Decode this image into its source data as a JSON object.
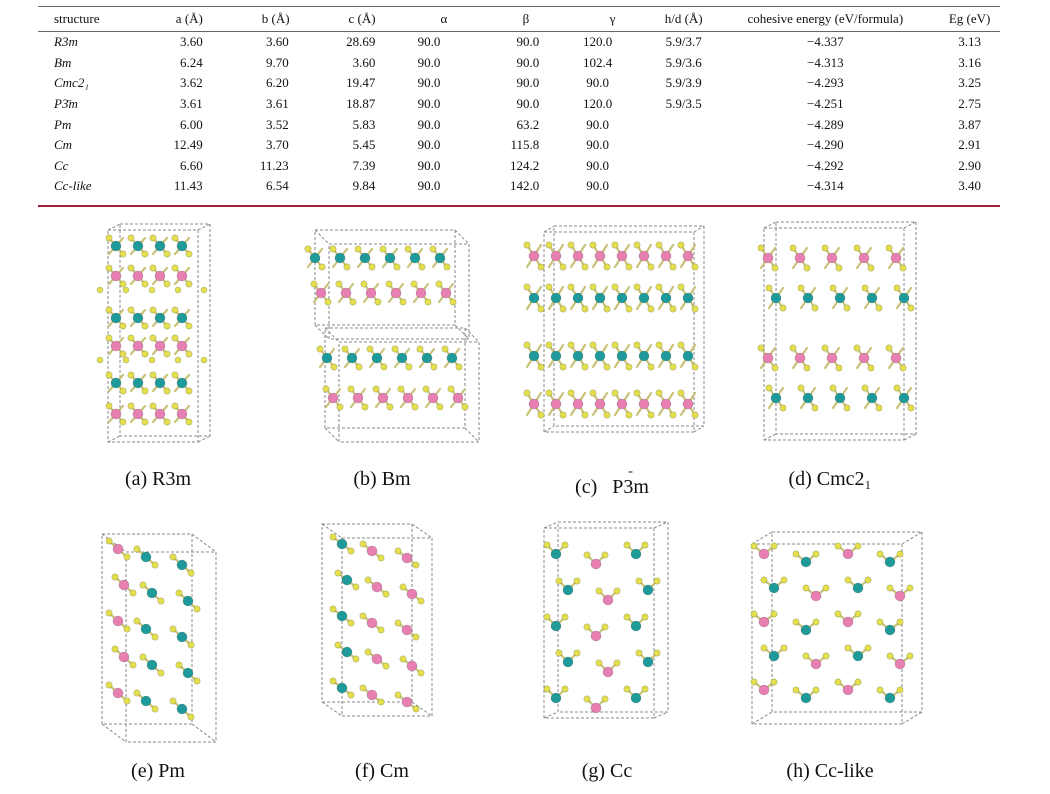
{
  "table": {
    "headers": [
      "structure",
      "a (Å)",
      "b (Å)",
      "c (Å)",
      "α",
      "β",
      "γ",
      "h/d (Å)",
      "cohesive energy (eV/formula)",
      "Eg (eV)"
    ],
    "rows": [
      [
        "R3m",
        "3.60",
        "3.60",
        "28.69",
        "90.0",
        "90.0",
        "120.0",
        "5.9/3.7",
        "−4.337",
        "3.13"
      ],
      [
        "Bm",
        "6.24",
        "9.70",
        "3.60",
        "90.0",
        "90.0",
        "102.4",
        "5.9/3.6",
        "−4.313",
        "3.16"
      ],
      [
        "Cmc2₁",
        "3.62",
        "6.20",
        "19.47",
        "90.0",
        "90.0",
        "90.0",
        "5.9/3.9",
        "−4.293",
        "3.25"
      ],
      [
        "P3̄m",
        "3.61",
        "3.61",
        "18.87",
        "90.0",
        "90.0",
        "120.0",
        "5.9/3.5",
        "−4.251",
        "2.75"
      ],
      [
        "Pm",
        "6.00",
        "3.52",
        "5.83",
        "90.0",
        "63.2",
        "90.0",
        "",
        "−4.289",
        "3.87"
      ],
      [
        "Cm",
        "12.49",
        "3.70",
        "5.45",
        "90.0",
        "115.8",
        "90.0",
        "",
        "−4.290",
        "2.91"
      ],
      [
        "Cc",
        "6.60",
        "11.23",
        "7.39",
        "90.0",
        "124.2",
        "90.0",
        "",
        "−4.292",
        "2.90"
      ],
      [
        "Cc-like",
        "11.43",
        "6.54",
        "9.84",
        "90.0",
        "142.0",
        "90.0",
        "",
        "−4.314",
        "3.40"
      ]
    ]
  },
  "figure": {
    "captions": {
      "a": "(a) R3m",
      "b": "(b) Bm",
      "c_prefix": "(c)",
      "c_main": "P3m",
      "c_overbar": "-",
      "d": "(d) Cmc2₁",
      "e": "(e) Pm",
      "f": "(f) Cm",
      "g": "(g) Cc",
      "h": "(h) Cc-like"
    },
    "colors": {
      "pink_atom": "#e77fb3",
      "teal_atom": "#1f9a9a",
      "yellow_atom": "#e3df4e",
      "cell_edge": "#8a8a8a",
      "rule": "#9b2335"
    }
  }
}
